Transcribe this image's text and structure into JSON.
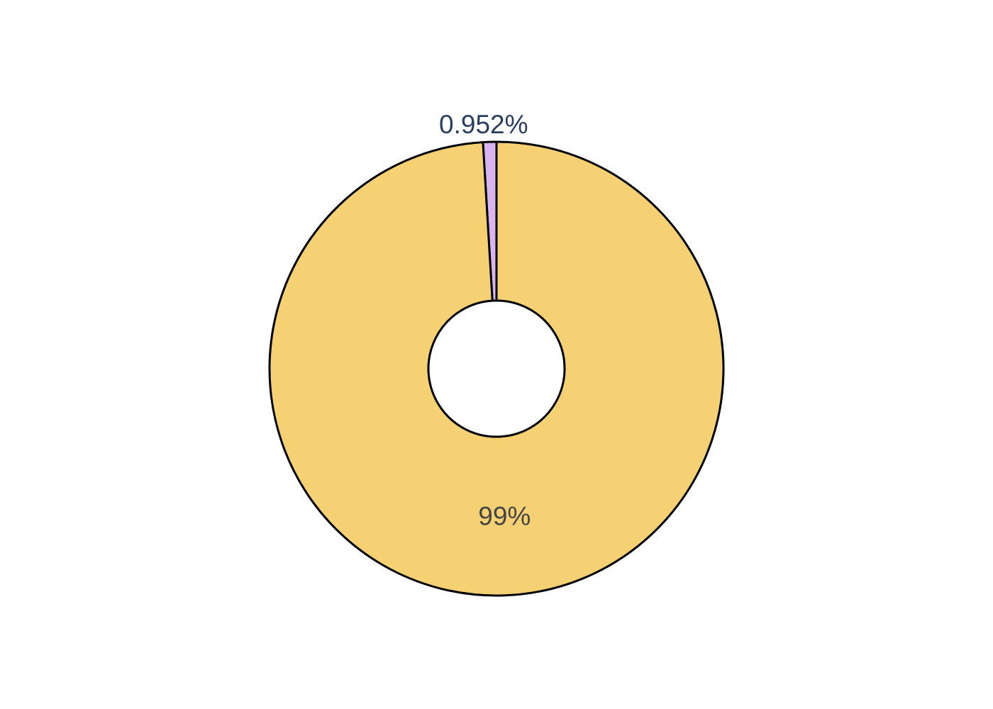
{
  "chart_data": {
    "type": "pie",
    "hole": true,
    "slices": [
      {
        "value": 0.952,
        "label": "0.952%",
        "color": "#dab4f0",
        "label_position": "outside",
        "label_color": "#2a3f5f"
      },
      {
        "value": 99.048,
        "label": "99%",
        "color": "#f5d174",
        "label_position": "inside",
        "label_color": "#444444"
      }
    ],
    "start_angle_deg": 0,
    "direction": "counterclockwise",
    "outline_color": "#000000"
  }
}
